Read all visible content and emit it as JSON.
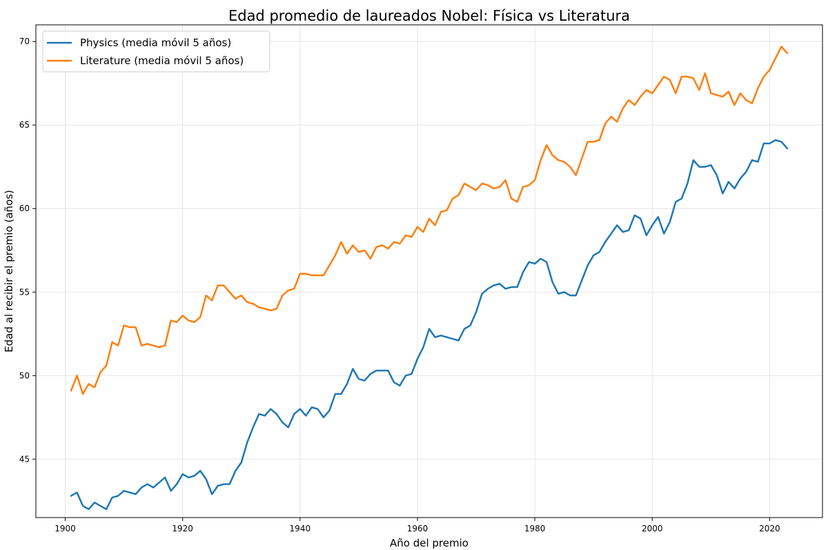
{
  "chart_data": {
    "type": "line",
    "title": "Edad promedio de laureados Nobel: Física vs Literatura",
    "xlabel": "Año del premio",
    "ylabel": "Edad al recibir el premio (años)",
    "xlim": [
      1895,
      2029
    ],
    "ylim": [
      41.5,
      71.0
    ],
    "xticks": [
      1900,
      1920,
      1940,
      1960,
      1980,
      2000,
      2020
    ],
    "yticks": [
      45,
      50,
      55,
      60,
      65,
      70
    ],
    "grid": true,
    "legend_position": "top-left",
    "x": [
      1901,
      1902,
      1903,
      1904,
      1905,
      1906,
      1907,
      1908,
      1909,
      1910,
      1911,
      1912,
      1913,
      1914,
      1915,
      1916,
      1917,
      1918,
      1919,
      1920,
      1921,
      1922,
      1923,
      1924,
      1925,
      1926,
      1927,
      1928,
      1929,
      1930,
      1931,
      1932,
      1933,
      1934,
      1935,
      1936,
      1937,
      1938,
      1939,
      1940,
      1941,
      1942,
      1943,
      1944,
      1945,
      1946,
      1947,
      1948,
      1949,
      1950,
      1951,
      1952,
      1953,
      1954,
      1955,
      1956,
      1957,
      1958,
      1959,
      1960,
      1961,
      1962,
      1963,
      1964,
      1965,
      1966,
      1967,
      1968,
      1969,
      1970,
      1971,
      1972,
      1973,
      1974,
      1975,
      1976,
      1977,
      1978,
      1979,
      1980,
      1981,
      1982,
      1983,
      1984,
      1985,
      1986,
      1987,
      1988,
      1989,
      1990,
      1991,
      1992,
      1993,
      1994,
      1995,
      1996,
      1997,
      1998,
      1999,
      2000,
      2001,
      2002,
      2003,
      2004,
      2005,
      2006,
      2007,
      2008,
      2009,
      2010,
      2011,
      2012,
      2013,
      2014,
      2015,
      2016,
      2017,
      2018,
      2019,
      2020,
      2021,
      2022,
      2023
    ],
    "series": [
      {
        "name": "Physics (media móvil 5 años)",
        "color": "#1f77b4",
        "values": [
          42.8,
          43.0,
          42.2,
          42.0,
          42.4,
          42.2,
          42.0,
          42.7,
          42.8,
          43.1,
          43.0,
          42.9,
          43.3,
          43.5,
          43.3,
          43.6,
          43.9,
          43.1,
          43.5,
          44.1,
          43.9,
          44.0,
          44.3,
          43.8,
          42.9,
          43.4,
          43.5,
          43.5,
          44.3,
          44.8,
          46.0,
          46.9,
          47.7,
          47.6,
          48.0,
          47.7,
          47.2,
          46.9,
          47.7,
          48.0,
          47.6,
          48.1,
          48.0,
          47.5,
          47.9,
          48.9,
          48.9,
          49.5,
          50.4,
          49.8,
          49.7,
          50.1,
          50.3,
          50.3,
          50.3,
          49.6,
          49.4,
          50.0,
          50.1,
          51.0,
          51.7,
          52.8,
          52.3,
          52.4,
          52.3,
          52.2,
          52.1,
          52.8,
          53.0,
          53.8,
          54.9,
          55.2,
          55.4,
          55.5,
          55.2,
          55.3,
          55.3,
          56.2,
          56.8,
          56.7,
          57.0,
          56.8,
          55.6,
          54.9,
          55.0,
          54.8,
          54.8,
          55.7,
          56.6,
          57.2,
          57.4,
          58.0,
          58.5,
          59.0,
          58.6,
          58.7,
          59.6,
          59.4,
          58.4,
          59.0,
          59.5,
          58.5,
          59.2,
          60.4,
          60.6,
          61.5,
          62.9,
          62.5,
          62.5,
          62.6,
          62.0,
          60.9,
          61.6,
          61.2,
          61.8,
          62.2,
          62.9,
          62.8,
          63.9,
          63.9,
          64.1,
          64.0,
          63.6
        ]
      },
      {
        "name": "Literature (media móvil 5 años)",
        "color": "#ff7f0e",
        "values": [
          49.1,
          50.0,
          48.9,
          49.5,
          49.3,
          50.2,
          50.6,
          52.0,
          51.8,
          53.0,
          52.9,
          52.9,
          51.8,
          51.9,
          51.8,
          51.7,
          51.8,
          53.3,
          53.2,
          53.6,
          53.3,
          53.2,
          53.5,
          54.8,
          54.5,
          55.4,
          55.4,
          55.0,
          54.6,
          54.8,
          54.4,
          54.3,
          54.1,
          54.0,
          53.9,
          54.0,
          54.8,
          55.1,
          55.2,
          56.1,
          56.1,
          56.0,
          56.0,
          56.0,
          56.6,
          57.2,
          58.0,
          57.3,
          57.8,
          57.4,
          57.5,
          57.0,
          57.7,
          57.8,
          57.6,
          58.0,
          57.9,
          58.4,
          58.3,
          58.9,
          58.6,
          59.4,
          59.0,
          59.8,
          59.9,
          60.6,
          60.8,
          61.5,
          61.3,
          61.1,
          61.5,
          61.4,
          61.2,
          61.3,
          61.7,
          60.6,
          60.4,
          61.3,
          61.4,
          61.7,
          62.9,
          63.8,
          63.2,
          62.9,
          62.8,
          62.5,
          62.0,
          63.0,
          64.0,
          64.0,
          64.1,
          65.1,
          65.5,
          65.2,
          66.0,
          66.5,
          66.2,
          66.7,
          67.1,
          66.9,
          67.4,
          67.9,
          67.7,
          66.9,
          67.9,
          67.9,
          67.8,
          67.1,
          68.1,
          66.9,
          66.8,
          66.7,
          67.0,
          66.2,
          66.9,
          66.5,
          66.3,
          67.2,
          67.9,
          68.3,
          69.0,
          69.7,
          69.3
        ]
      }
    ]
  }
}
